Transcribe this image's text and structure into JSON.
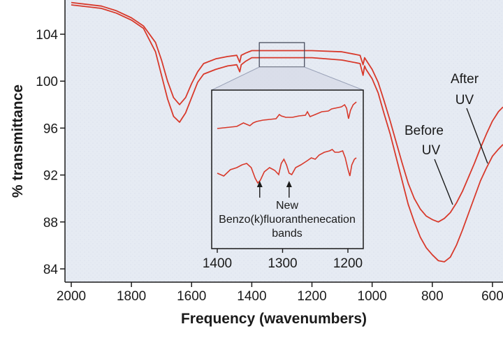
{
  "chart_data": {
    "type": "line",
    "xlabel": "Frequency (wavenumbers)",
    "ylabel": "% transmittance",
    "xlim": [
      2000,
      565
    ],
    "ylim": [
      83,
      107
    ],
    "x_ticks": [
      2000,
      1800,
      1600,
      1400,
      1200,
      1000,
      800,
      600
    ],
    "y_ticks": [
      84,
      88,
      92,
      96,
      100,
      104
    ],
    "series": [
      {
        "color": "#d8392b",
        "x": [
          2000,
          1900,
          1850,
          1800,
          1760,
          1720,
          1700,
          1680,
          1660,
          1640,
          1620,
          1600,
          1580,
          1560,
          1520,
          1480,
          1450,
          1440,
          1435,
          1420,
          1400,
          1350,
          1300,
          1200,
          1100,
          1040,
          1030,
          1025,
          1020,
          1000,
          980,
          960,
          940,
          920,
          900,
          880,
          860,
          840,
          820,
          800,
          780,
          760,
          740,
          720,
          700,
          680,
          660,
          640,
          620,
          600,
          580,
          565
        ],
        "y": [
          106.5,
          106.2,
          105.8,
          105.2,
          104.5,
          102.5,
          100.5,
          98.5,
          97.0,
          96.5,
          97.3,
          98.6,
          99.9,
          100.6,
          101.0,
          101.3,
          101.4,
          100.8,
          101.4,
          101.7,
          102.0,
          102.0,
          102.0,
          102.0,
          101.8,
          101.5,
          100.5,
          101.3,
          101.0,
          100.2,
          99.0,
          97.2,
          95.5,
          93.5,
          91.5,
          89.5,
          88.0,
          86.7,
          85.8,
          85.2,
          84.7,
          84.6,
          85.0,
          86.0,
          87.3,
          88.7,
          90.1,
          91.5,
          92.6,
          93.6,
          94.2,
          94.6
        ]
      },
      {
        "color": "#d8392b",
        "x": [
          2000,
          1900,
          1850,
          1800,
          1760,
          1720,
          1700,
          1680,
          1660,
          1640,
          1620,
          1600,
          1580,
          1560,
          1520,
          1480,
          1450,
          1440,
          1435,
          1420,
          1400,
          1350,
          1300,
          1200,
          1100,
          1040,
          1030,
          1025,
          1020,
          1000,
          980,
          960,
          940,
          920,
          900,
          880,
          860,
          840,
          820,
          800,
          780,
          760,
          740,
          720,
          700,
          680,
          660,
          640,
          620,
          600,
          580,
          565
        ],
        "y": [
          106.7,
          106.4,
          106.0,
          105.4,
          104.7,
          103.3,
          101.8,
          100.0,
          98.6,
          98.0,
          98.6,
          99.8,
          100.8,
          101.5,
          101.9,
          102.1,
          102.2,
          101.6,
          102.2,
          102.4,
          102.6,
          102.6,
          102.6,
          102.6,
          102.5,
          102.2,
          101.4,
          102.0,
          101.8,
          101.0,
          99.9,
          98.3,
          96.6,
          94.8,
          93.0,
          91.3,
          90.0,
          89.1,
          88.5,
          88.2,
          88.0,
          88.3,
          88.8,
          89.6,
          90.6,
          91.8,
          93.0,
          94.3,
          95.5,
          96.6,
          97.4,
          97.8
        ]
      }
    ],
    "labels": {
      "after": [
        "After",
        "UV"
      ],
      "before": [
        "Before",
        "UV"
      ]
    },
    "inset": {
      "xlim": [
        1400,
        1185
      ],
      "x_ticks": [
        1400,
        1300,
        1200
      ],
      "zoom_range": [
        1375,
        1225
      ],
      "annotation": [
        "New",
        "Benzo(k)fluoranthenecation",
        "bands"
      ],
      "arrows_at": [
        1335,
        1290
      ]
    }
  }
}
